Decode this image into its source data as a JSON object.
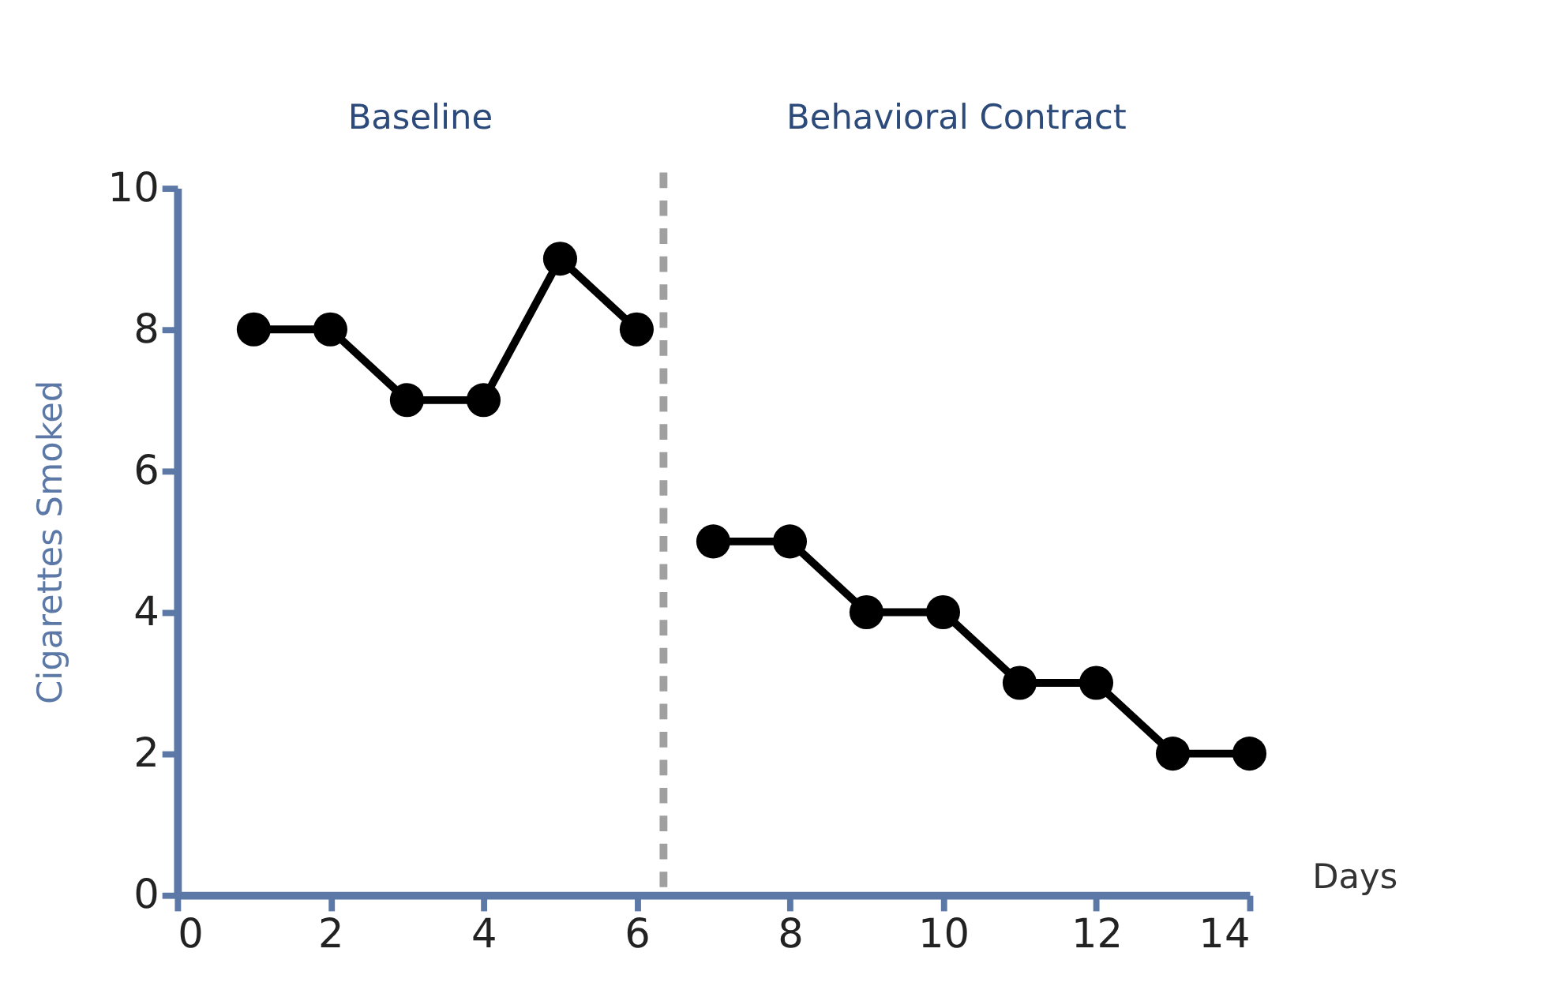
{
  "chart_data": {
    "type": "line",
    "xlabel": "Days",
    "ylabel": "Cigarettes Smoked",
    "annotations": [
      "Baseline",
      "Behavioral Contract"
    ],
    "series": [
      {
        "color": "#000000",
        "x": [
          1,
          2,
          3,
          4,
          5,
          6
        ],
        "values": [
          8,
          8,
          7,
          7,
          9,
          8
        ]
      },
      {
        "color": "#000000",
        "x": [
          7,
          8,
          9,
          10,
          11,
          12,
          13,
          14
        ],
        "values": [
          5,
          5,
          4,
          4,
          3,
          3,
          2,
          2
        ]
      }
    ],
    "xlim": [
      0,
      14
    ],
    "xticks": [
      0,
      2,
      4,
      6,
      8,
      10,
      12,
      14
    ],
    "ylim": [
      0,
      10
    ],
    "yticks": [
      0,
      2,
      4,
      6,
      8,
      10
    ],
    "ref_lines": [
      {
        "axis": "x",
        "value": 6.35,
        "color": "#a0a0a0",
        "line_style": "dashed"
      }
    ],
    "grid": false,
    "marker": "circle",
    "line_style": "solid"
  }
}
